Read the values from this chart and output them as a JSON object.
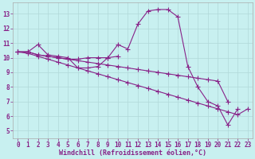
{
  "background_color": "#c8f0f0",
  "line_color": "#882288",
  "marker": "+",
  "markersize": 4.0,
  "linewidth": 0.8,
  "xlabel": "Windchill (Refroidissement éolien,°C)",
  "xlim": [
    -0.5,
    23.5
  ],
  "ylim": [
    4.5,
    13.8
  ],
  "yticks": [
    5,
    6,
    7,
    8,
    9,
    10,
    11,
    12,
    13
  ],
  "xticks": [
    0,
    1,
    2,
    3,
    4,
    5,
    6,
    7,
    8,
    9,
    10,
    11,
    12,
    13,
    14,
    15,
    16,
    17,
    18,
    19,
    20,
    21,
    22,
    23
  ],
  "tick_fontsize": 5.5,
  "xlabel_fontsize": 6.0,
  "grid_color": "#b0d8d8",
  "lines": [
    {
      "x": [
        0,
        1,
        2,
        3,
        4,
        5,
        6,
        7,
        8,
        9,
        10,
        11,
        12,
        13,
        14,
        15,
        16,
        17,
        18,
        19,
        20,
        21,
        22
      ],
      "y": [
        10.4,
        10.4,
        10.9,
        10.2,
        10.1,
        10.0,
        9.3,
        9.3,
        9.4,
        10.0,
        10.9,
        10.6,
        12.3,
        13.2,
        13.3,
        13.3,
        12.8,
        9.4,
        8.0,
        7.0,
        6.7,
        5.4,
        6.5
      ]
    },
    {
      "x": [
        0,
        1,
        2,
        3,
        4,
        5,
        6,
        7,
        8,
        9,
        10
      ],
      "y": [
        10.4,
        10.4,
        10.2,
        10.1,
        10.0,
        9.9,
        9.9,
        10.0,
        10.0,
        10.0,
        10.1
      ]
    },
    {
      "x": [
        0,
        1,
        2,
        3,
        4,
        5,
        6,
        7,
        8,
        9,
        10,
        11,
        12,
        13,
        14,
        15,
        16,
        17,
        18,
        19,
        20,
        21,
        22,
        23
      ],
      "y": [
        10.4,
        10.3,
        10.1,
        9.9,
        9.7,
        9.5,
        9.3,
        9.1,
        8.9,
        8.7,
        8.5,
        8.3,
        8.1,
        7.9,
        7.7,
        7.5,
        7.3,
        7.1,
        6.9,
        6.7,
        6.5,
        6.3,
        6.1,
        6.5
      ]
    },
    {
      "x": [
        0,
        1,
        2,
        3,
        4,
        5,
        6,
        7,
        8,
        9,
        10,
        11,
        12,
        13,
        14,
        15,
        16,
        17,
        18,
        19,
        20,
        21
      ],
      "y": [
        10.4,
        10.4,
        10.2,
        10.1,
        10.0,
        9.9,
        9.8,
        9.7,
        9.6,
        9.5,
        9.4,
        9.3,
        9.2,
        9.1,
        9.0,
        8.9,
        8.8,
        8.7,
        8.6,
        8.5,
        8.4,
        7.0
      ]
    }
  ]
}
